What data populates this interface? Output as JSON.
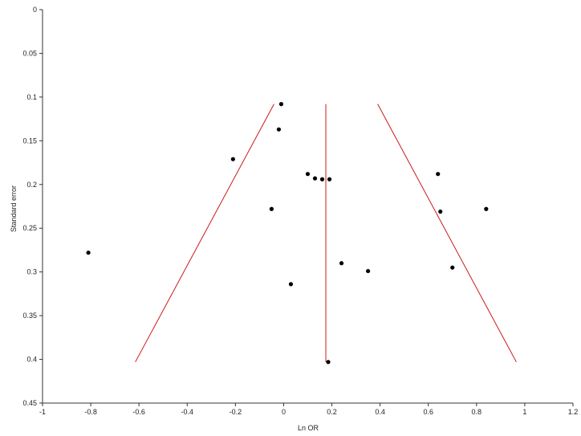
{
  "chart_data": {
    "type": "scatter",
    "xlabel": "Ln OR",
    "ylabel": "Standard error",
    "xlim": [
      -1,
      1.2
    ],
    "ylim": [
      0,
      0.45
    ],
    "y_inverted": true,
    "grid": false,
    "x_ticks": [
      "-1",
      "-0.8",
      "-0.6",
      "-0.4",
      "-0.2",
      "0",
      "0.2",
      "0.4",
      "0.6",
      "0.8",
      "1",
      "1.2"
    ],
    "x_tick_values": [
      -1,
      -0.8,
      -0.6,
      -0.4,
      -0.2,
      0,
      0.2,
      0.4,
      0.6,
      0.8,
      1,
      1.2
    ],
    "y_ticks": [
      "0",
      "0.05",
      "0.1",
      "0.15",
      "0.2",
      "0.25",
      "0.3",
      "0.35",
      "0.4",
      "0.45"
    ],
    "y_tick_values": [
      0,
      0.05,
      0.1,
      0.15,
      0.2,
      0.25,
      0.3,
      0.35,
      0.4,
      0.45
    ],
    "points": [
      {
        "x": -0.01,
        "y": 0.108
      },
      {
        "x": -0.02,
        "y": 0.137
      },
      {
        "x": -0.21,
        "y": 0.171
      },
      {
        "x": 0.1,
        "y": 0.188
      },
      {
        "x": 0.13,
        "y": 0.193
      },
      {
        "x": 0.16,
        "y": 0.194
      },
      {
        "x": 0.19,
        "y": 0.194
      },
      {
        "x": -0.05,
        "y": 0.228
      },
      {
        "x": -0.81,
        "y": 0.278
      },
      {
        "x": 0.24,
        "y": 0.29
      },
      {
        "x": 0.35,
        "y": 0.299
      },
      {
        "x": 0.03,
        "y": 0.314
      },
      {
        "x": 0.185,
        "y": 0.403
      },
      {
        "x": 0.64,
        "y": 0.188
      },
      {
        "x": 0.65,
        "y": 0.231
      },
      {
        "x": 0.84,
        "y": 0.228
      },
      {
        "x": 0.7,
        "y": 0.295
      }
    ],
    "pooled_estimate": {
      "x": 0.175,
      "y_range": [
        0.108,
        0.403
      ]
    },
    "funnel_left": [
      {
        "x": -0.04,
        "y": 0.108
      },
      {
        "x": -0.615,
        "y": 0.403
      }
    ],
    "funnel_right": [
      {
        "x": 0.39,
        "y": 0.108
      },
      {
        "x": 0.965,
        "y": 0.403
      }
    ],
    "line_color": "#cc1a1a",
    "point_color": "#000000"
  }
}
